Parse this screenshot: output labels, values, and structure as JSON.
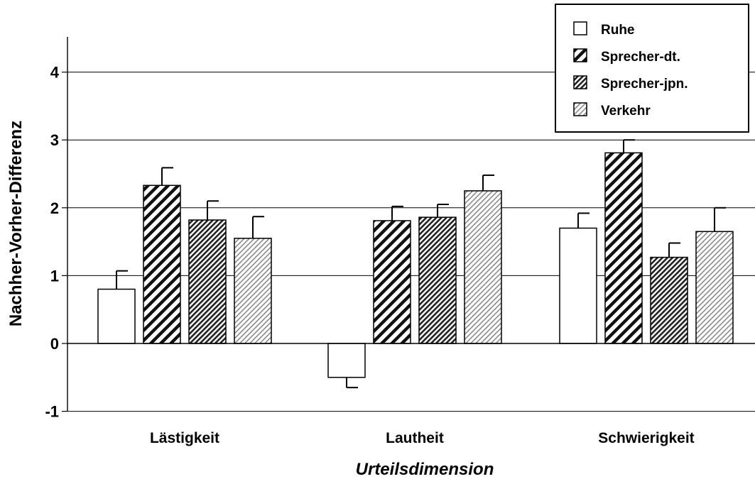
{
  "chart_data": {
    "type": "bar",
    "categories": [
      "Lästigkeit",
      "Lautheit",
      "Schwierigkeit"
    ],
    "series": [
      {
        "name": "Ruhe",
        "values": [
          0.8,
          -0.5,
          1.7
        ],
        "errors": [
          0.27,
          0.15,
          0.22
        ],
        "pattern": "none"
      },
      {
        "name": "Sprecher-dt.",
        "values": [
          2.33,
          1.81,
          2.81
        ],
        "errors": [
          0.26,
          0.21,
          0.19
        ],
        "pattern": "wide-diagonal"
      },
      {
        "name": "Sprecher-jpn.",
        "values": [
          1.82,
          1.86,
          1.27
        ],
        "errors": [
          0.28,
          0.19,
          0.21
        ],
        "pattern": "dense-diagonal"
      },
      {
        "name": "Verkehr",
        "values": [
          1.55,
          2.25,
          1.65
        ],
        "errors": [
          0.32,
          0.23,
          0.35
        ],
        "pattern": "light-diagonal"
      }
    ],
    "ylim": [
      -1,
      4.5
    ],
    "yticks": [
      -1,
      0,
      1,
      2,
      3,
      4
    ],
    "ytick_labels": [
      "-1",
      "0",
      "1",
      "2",
      "3",
      "4"
    ],
    "ylabel": "Nachher-Vorher-Differenz",
    "xlabel": "Urteilsdimension",
    "grid": true,
    "legend_position": "top-right"
  }
}
